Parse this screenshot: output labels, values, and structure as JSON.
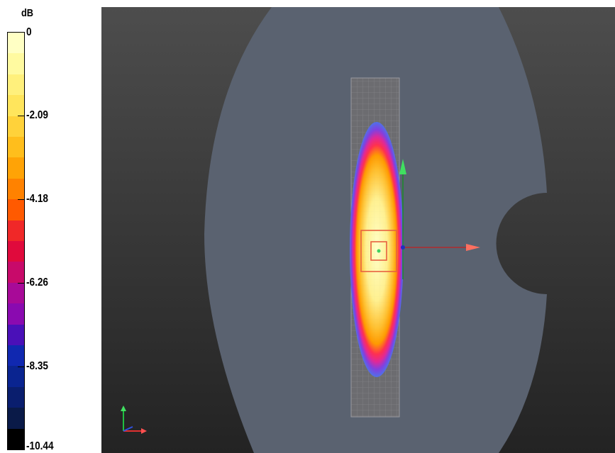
{
  "legend": {
    "unit": "dB",
    "ticks": [
      "0",
      "-2.09",
      "-4.18",
      "-6.26",
      "-8.35",
      "-10.44"
    ],
    "colors": [
      "#ffffc4",
      "#fffaa0",
      "#fff07c",
      "#ffe55c",
      "#ffd23a",
      "#ffbe1c",
      "#ffa306",
      "#ff8200",
      "#ff5a00",
      "#f02828",
      "#e00a3c",
      "#c80a6a",
      "#a80a98",
      "#8a0ab0",
      "#4a10b8",
      "#1028b0",
      "#0a2490",
      "#0a1e6e",
      "#0a1a48",
      "#000000"
    ]
  },
  "viewport": {
    "background_color": "#3a3a3a",
    "body_color": "#5a6270",
    "panel_color": "#6c6c70"
  }
}
